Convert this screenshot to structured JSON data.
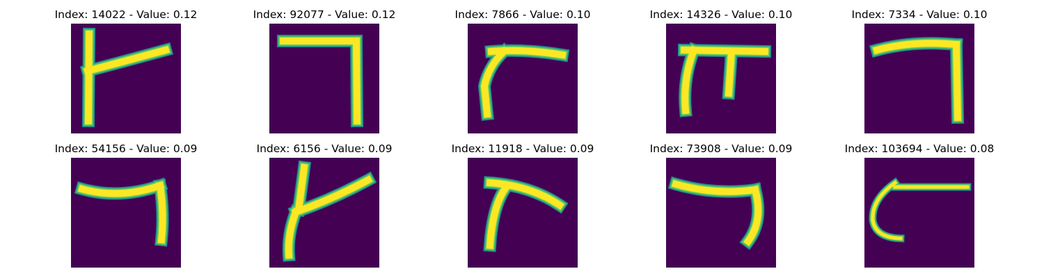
{
  "colors": {
    "background": "#440154",
    "stroke_core": "#fde725",
    "stroke_mid": "#5ec962",
    "stroke_edge": "#21918c"
  },
  "panels": [
    {
      "title": "Index: 14022 - Value: 0.12"
    },
    {
      "title": "Index: 92077 - Value: 0.12"
    },
    {
      "title": "Index: 7866 - Value: 0.10"
    },
    {
      "title": "Index: 14326 - Value: 0.10"
    },
    {
      "title": "Index: 7334 - Value: 0.10"
    },
    {
      "title": "Index: 54156 - Value: 0.09"
    },
    {
      "title": "Index: 6156 - Value: 0.09"
    },
    {
      "title": "Index: 11918 - Value: 0.09"
    },
    {
      "title": "Index: 73908 - Value: 0.09"
    },
    {
      "title": "Index: 103694 - Value: 0.08"
    }
  ]
}
